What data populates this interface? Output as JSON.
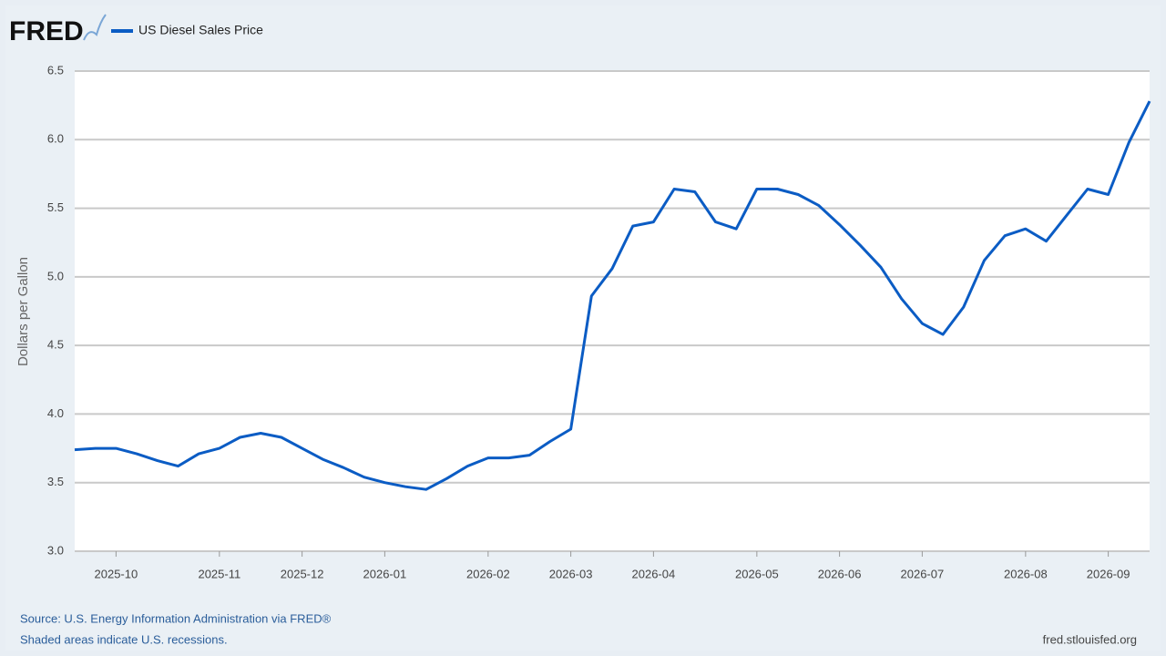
{
  "chart_data": {
    "type": "line",
    "brand": "FRED",
    "y_label": "Dollars per Gallon",
    "source": "Source: U.S. Energy Information Administration via FRED®",
    "note": "Shaded areas indicate U.S. recessions.",
    "site": "fred.stlouisfed.org",
    "categories": [
      null,
      null,
      "2025-10",
      null,
      null,
      null,
      null,
      "2025-11",
      null,
      null,
      null,
      "2025-12",
      null,
      null,
      null,
      "2026-01",
      null,
      null,
      null,
      null,
      "2026-02",
      null,
      null,
      null,
      "2026-03",
      null,
      null,
      null,
      "2026-04",
      null,
      null,
      null,
      null,
      "2026-05",
      null,
      null,
      null,
      "2026-06",
      null,
      null,
      null,
      "2026-07",
      null,
      null,
      null,
      null,
      "2026-08",
      null,
      null,
      null,
      "2026-09",
      null,
      null
    ],
    "series": [
      {
        "name": "US Diesel Sales Price",
        "color": "#0b5cc4",
        "values": [
          3.74,
          3.75,
          3.75,
          3.71,
          3.66,
          3.62,
          3.71,
          3.75,
          3.83,
          3.86,
          3.83,
          3.75,
          3.67,
          3.61,
          3.54,
          3.5,
          3.47,
          3.45,
          3.53,
          3.62,
          3.68,
          3.68,
          3.7,
          3.8,
          3.89,
          4.86,
          5.06,
          5.37,
          5.4,
          5.64,
          5.62,
          5.4,
          5.35,
          5.64,
          5.64,
          5.6,
          5.52,
          5.38,
          5.23,
          5.07,
          4.84,
          4.66,
          4.58,
          4.78,
          5.12,
          5.3,
          5.35,
          5.26,
          5.45,
          5.64,
          5.6,
          5.98,
          6.28
        ]
      }
    ],
    "ylim": [
      3.0,
      6.5
    ],
    "yticks": [
      {
        "value": 3,
        "label": "3.0"
      },
      3.5,
      {
        "value": 4,
        "label": "4.0"
      },
      4.5,
      {
        "value": 5,
        "label": "5.0"
      },
      5.5,
      {
        "value": 6,
        "label": "6.0"
      },
      6.5
    ],
    "grid": true
  }
}
